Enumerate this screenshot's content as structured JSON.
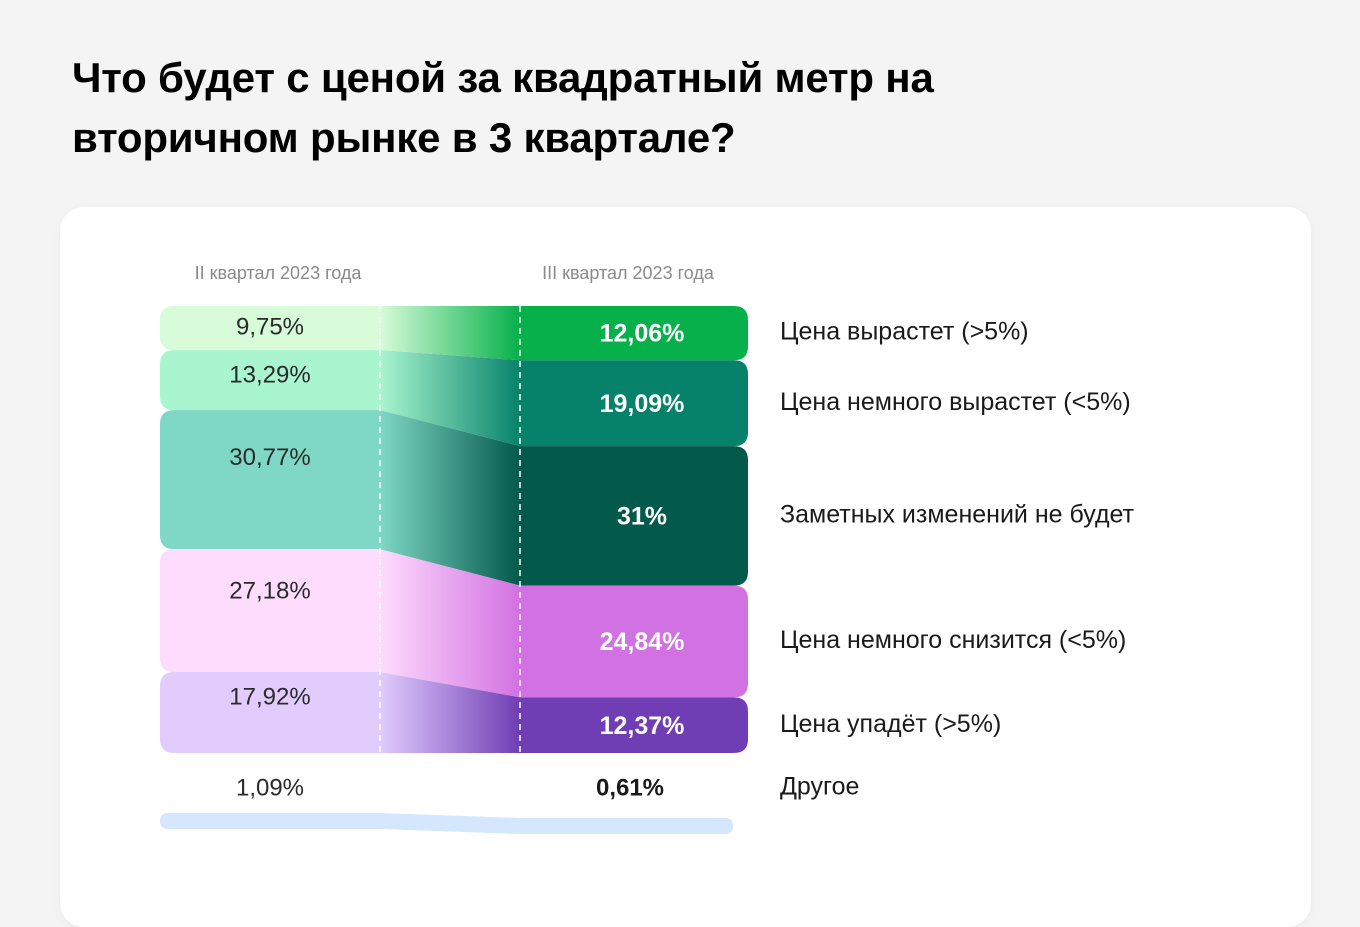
{
  "title_line1": "Что будет с ценой за квадратный метр на",
  "title_line2": "вторичном рынке в 3 квартале?",
  "chart_data": {
    "type": "sankey-stacked-bar",
    "periods": [
      "II квартал 2023 года",
      "III квартал 2023 года"
    ],
    "series": [
      {
        "name": "Цена вырастет (>5%)",
        "values": [
          9.75,
          12.06
        ],
        "labels": [
          "9,75%",
          "12,06%"
        ],
        "colors": [
          "#d8fbd9",
          "#06b04a"
        ]
      },
      {
        "name": "Цена немного вырастет (<5%)",
        "values": [
          13.29,
          19.09
        ],
        "labels": [
          "13,29%",
          "19,09%"
        ],
        "colors": [
          "#a9f5cf",
          "#07826a"
        ]
      },
      {
        "name": "Заметных изменений не будет",
        "values": [
          30.77,
          31
        ],
        "labels": [
          "30,77%",
          "31%"
        ],
        "colors": [
          "#7fd8c6",
          "#03594a"
        ]
      },
      {
        "name": "Цена немного снизится (<5%)",
        "values": [
          27.18,
          24.84
        ],
        "labels": [
          "27,18%",
          "24,84%"
        ],
        "colors": [
          "#fddcfd",
          "#d271e2"
        ]
      },
      {
        "name": "Цена упадёт (>5%)",
        "values": [
          17.92,
          12.37
        ],
        "labels": [
          "17,92%",
          "12,37%"
        ],
        "colors": [
          "#e1ccfd",
          "#6f3db4"
        ]
      },
      {
        "name": "Другое",
        "values": [
          1.09,
          0.61
        ],
        "labels": [
          "1,09%",
          "0,61%"
        ],
        "colors": [
          "#d4e7fd",
          "#d4e7fd"
        ]
      }
    ]
  }
}
